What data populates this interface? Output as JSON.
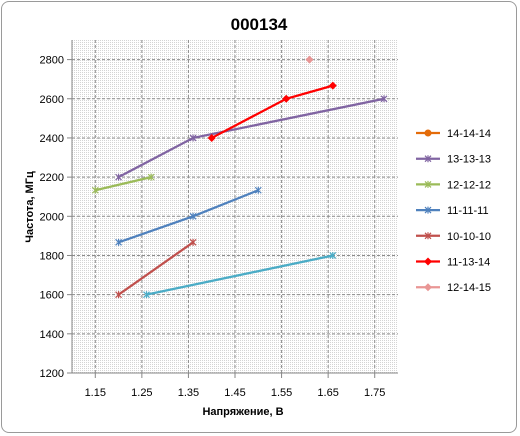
{
  "chart_data": {
    "type": "line",
    "title": "000134",
    "xlabel": "Напряжение, В",
    "ylabel": "Частота,  МГц",
    "xlim": [
      1.1,
      1.8
    ],
    "ylim": [
      1200,
      2900
    ],
    "xticks": [
      1.15,
      1.25,
      1.35,
      1.45,
      1.55,
      1.65,
      1.75
    ],
    "xtick_labels": [
      "1.15",
      "1.25",
      "1.35",
      "1.45",
      "1.55",
      "1.65",
      "1.75"
    ],
    "yticks": [
      1200,
      1400,
      1600,
      1800,
      2000,
      2200,
      2400,
      2600,
      2800
    ],
    "grid": true,
    "legend_position": "right",
    "series": [
      {
        "name": "14-14-14",
        "color": "#e46c0a",
        "marker": "circle",
        "points": []
      },
      {
        "name": "13-13-13",
        "color": "#8064a2",
        "marker": "star",
        "points": [
          [
            1.2,
            2200
          ],
          [
            1.36,
            2400
          ],
          [
            1.77,
            2600
          ]
        ]
      },
      {
        "name": "12-12-12",
        "color": "#9bbb59",
        "marker": "star",
        "points": [
          [
            1.15,
            2133
          ],
          [
            1.27,
            2200
          ]
        ]
      },
      {
        "name": "11-11-11",
        "color": "#4f81bd",
        "marker": "star",
        "points": [
          [
            1.2,
            1867
          ],
          [
            1.36,
            2000
          ],
          [
            1.5,
            2133
          ]
        ]
      },
      {
        "name": "10-10-10",
        "color": "#c0504d",
        "marker": "star",
        "points": [
          [
            1.2,
            1600
          ],
          [
            1.36,
            1867
          ]
        ]
      },
      {
        "name": "11-13-14",
        "color": "#ff0000",
        "marker": "diamond",
        "points": [
          [
            1.4,
            2400
          ],
          [
            1.56,
            2600
          ],
          [
            1.66,
            2667
          ]
        ]
      },
      {
        "name": "12-14-15",
        "color": "#e99695",
        "marker": "diamond",
        "points": [
          [
            1.61,
            2800
          ]
        ]
      },
      {
        "name": "",
        "color": "#4bacc6",
        "marker": "star",
        "points": [
          [
            1.26,
            1600
          ],
          [
            1.66,
            1800
          ]
        ]
      }
    ]
  }
}
